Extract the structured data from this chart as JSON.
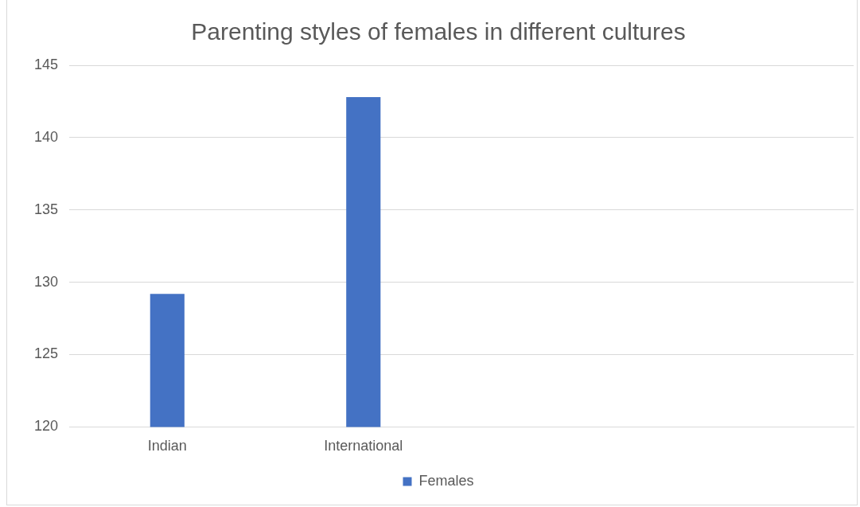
{
  "chart_data": {
    "type": "bar",
    "title": "Parenting styles of females in different cultures",
    "categories": [
      "Indian",
      "International",
      null,
      null
    ],
    "series": [
      {
        "name": "Females",
        "color": "#4472c4",
        "values": [
          129.2,
          142.8,
          null,
          null
        ]
      }
    ],
    "ylim": [
      120,
      145
    ],
    "yticks": [
      120,
      125,
      130,
      135,
      140,
      145
    ],
    "grid": "y",
    "legend": "bottom"
  }
}
